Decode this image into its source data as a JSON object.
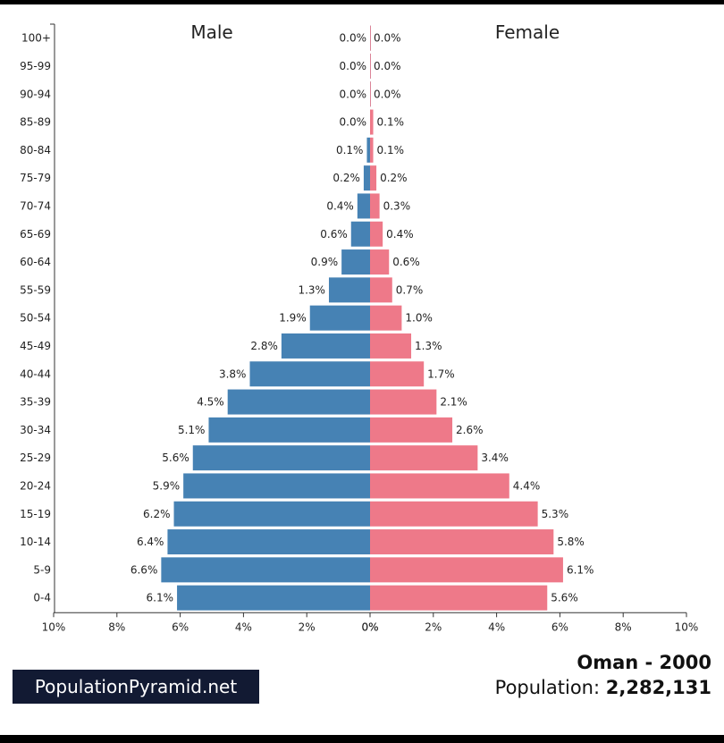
{
  "chart_data": {
    "type": "bar",
    "orientation": "horizontal-pyramid",
    "categories": [
      "100+",
      "95-99",
      "90-94",
      "85-89",
      "80-84",
      "75-79",
      "70-74",
      "65-69",
      "60-64",
      "55-59",
      "50-54",
      "45-49",
      "40-44",
      "35-39",
      "30-34",
      "25-29",
      "20-24",
      "15-19",
      "10-14",
      "5-9",
      "0-4"
    ],
    "series": [
      {
        "name": "Male",
        "color": "#4682b4",
        "values": [
          0.0,
          0.0,
          0.0,
          0.0,
          0.1,
          0.2,
          0.4,
          0.6,
          0.9,
          1.3,
          1.9,
          2.8,
          3.8,
          4.5,
          5.1,
          5.6,
          5.9,
          6.2,
          6.4,
          6.6,
          6.1
        ],
        "labels": [
          "0.0%",
          "0.0%",
          "0.0%",
          "0.0%",
          "0.1%",
          "0.2%",
          "0.4%",
          "0.6%",
          "0.9%",
          "1.3%",
          "1.9%",
          "2.8%",
          "3.8%",
          "4.5%",
          "5.1%",
          "5.6%",
          "5.9%",
          "6.2%",
          "6.4%",
          "6.6%",
          "6.1%"
        ]
      },
      {
        "name": "Female",
        "color": "#ee7989",
        "values": [
          0.0,
          0.0,
          0.0,
          0.1,
          0.1,
          0.2,
          0.3,
          0.4,
          0.6,
          0.7,
          1.0,
          1.3,
          1.7,
          2.1,
          2.6,
          3.4,
          4.4,
          5.3,
          5.8,
          6.1,
          5.6
        ],
        "labels": [
          "0.0%",
          "0.0%",
          "0.0%",
          "0.1%",
          "0.1%",
          "0.2%",
          "0.3%",
          "0.4%",
          "0.6%",
          "0.7%",
          "1.0%",
          "1.3%",
          "1.7%",
          "2.1%",
          "2.6%",
          "3.4%",
          "4.4%",
          "5.3%",
          "5.8%",
          "6.1%",
          "5.6%"
        ]
      }
    ],
    "x_ticks": [
      "10%",
      "8%",
      "6%",
      "4%",
      "2%",
      "0%",
      "0%",
      "2%",
      "4%",
      "6%",
      "8%",
      "10%"
    ],
    "xlim": [
      -10,
      10
    ],
    "grid": false,
    "titles": {
      "left": "Male",
      "right": "Female"
    }
  },
  "footer": {
    "brand": "PopulationPyramid.net",
    "country": "Oman",
    "separator": " - ",
    "year": "2000",
    "population_label": "Population: ",
    "population_value": "2,282,131"
  }
}
